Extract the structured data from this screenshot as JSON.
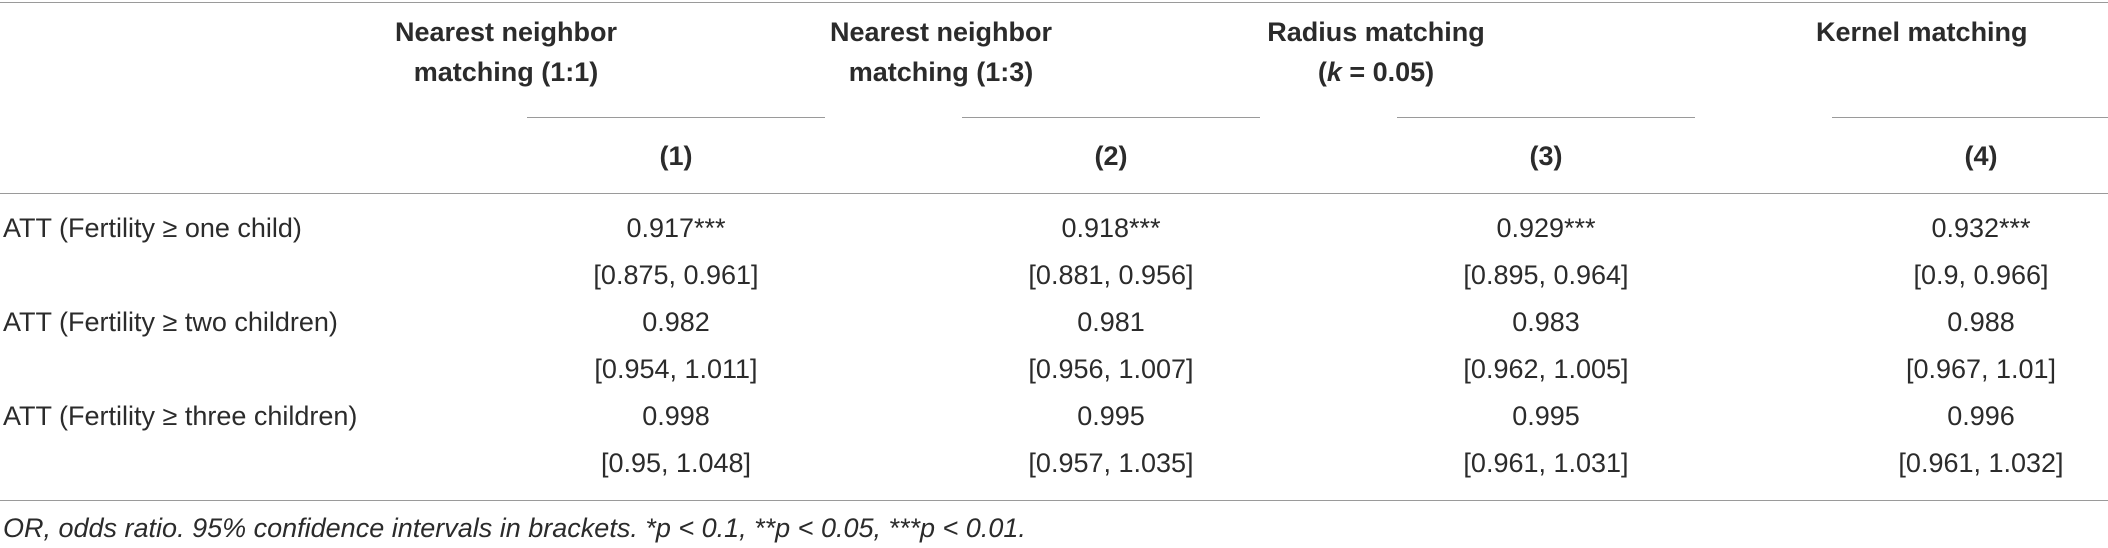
{
  "columns": [
    {
      "header_line1": "Nearest neighbor",
      "header_line2": "matching (1:1)",
      "number": "(1)"
    },
    {
      "header_line1": "Nearest neighbor",
      "header_line2": "matching (1:3)",
      "number": "(2)"
    },
    {
      "header_line1": "Radius matching",
      "header_line2": "(k = 0.05)",
      "number": "(3)"
    },
    {
      "header_line1": "Kernel matching",
      "header_line2": "",
      "number": "(4)"
    }
  ],
  "rows": [
    {
      "label": "ATT (Fertility ≥ one child)",
      "estimates": [
        "0.917***",
        "0.918***",
        "0.929***",
        "0.932***"
      ],
      "intervals": [
        "[0.875, 0.961]",
        "[0.881, 0.956]",
        "[0.895, 0.964]",
        "[0.9, 0.966]"
      ]
    },
    {
      "label": "ATT (Fertility ≥ two children)",
      "estimates": [
        "0.982",
        "0.981",
        "0.983",
        "0.988"
      ],
      "intervals": [
        "[0.954, 1.011]",
        "[0.956, 1.007]",
        "[0.962, 1.005]",
        "[0.967, 1.01]"
      ]
    },
    {
      "label": "ATT (Fertility ≥ three children)",
      "estimates": [
        "0.998",
        "0.995",
        "0.995",
        "0.996"
      ],
      "intervals": [
        "[0.95, 1.048]",
        "[0.957, 1.035]",
        "[0.961, 1.031]",
        "[0.961, 1.032]"
      ]
    }
  ],
  "footnote": "OR, odds ratio. 95% confidence intervals in brackets. *p < 0.1, **p < 0.05, ***p < 0.01."
}
